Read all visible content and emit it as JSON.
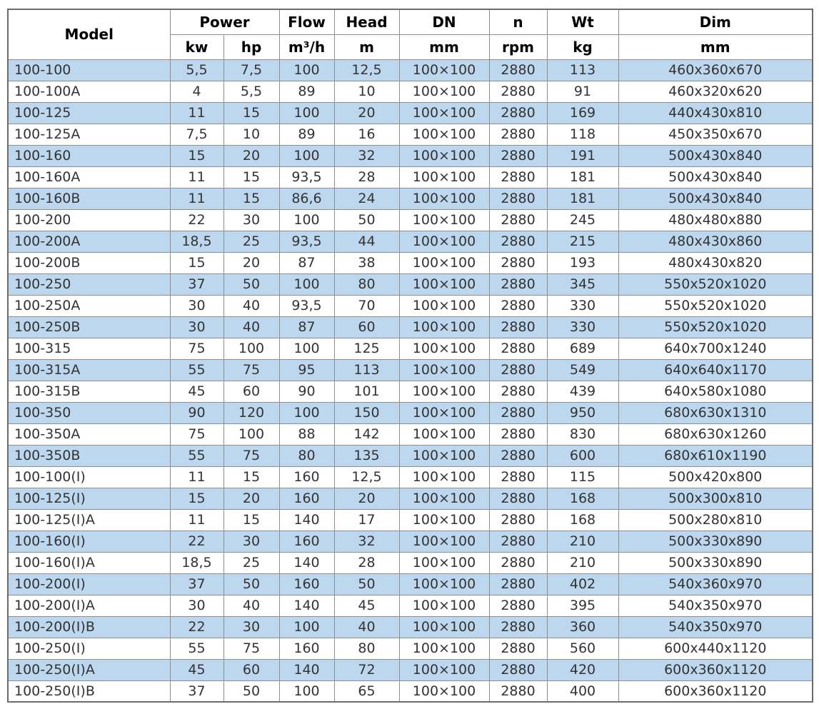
{
  "colors": {
    "alt_row": "#bdd7ee",
    "border": "#8e8e8e",
    "outer_border": "#6b6b6b",
    "header_text": "#000000",
    "body_text": "#333333",
    "background": "#ffffff"
  },
  "table": {
    "header": {
      "model": "Model",
      "power": "Power",
      "kw": "kw",
      "hp": "hp",
      "flow": "Flow",
      "flow_unit": "m³/h",
      "head": "Head",
      "head_unit": "m",
      "dn": "DN",
      "dn_unit": "mm",
      "n": "n",
      "n_unit": "rpm",
      "wt": "Wt",
      "wt_unit": "kg",
      "dim": "Dim",
      "dim_unit": "mm"
    },
    "rows": [
      [
        "100-100",
        "5,5",
        "7,5",
        "100",
        "12,5",
        "100×100",
        "2880",
        "113",
        "460x360x670"
      ],
      [
        "100-100A",
        "4",
        "5,5",
        "89",
        "10",
        "100×100",
        "2880",
        "91",
        "460x320x620"
      ],
      [
        "100-125",
        "11",
        "15",
        "100",
        "20",
        "100×100",
        "2880",
        "169",
        "440x430x810"
      ],
      [
        "100-125A",
        "7,5",
        "10",
        "89",
        "16",
        "100×100",
        "2880",
        "118",
        "450x350x670"
      ],
      [
        "100-160",
        "15",
        "20",
        "100",
        "32",
        "100×100",
        "2880",
        "191",
        "500x430x840"
      ],
      [
        "100-160A",
        "11",
        "15",
        "93,5",
        "28",
        "100×100",
        "2880",
        "181",
        "500x430x840"
      ],
      [
        "100-160B",
        "11",
        "15",
        "86,6",
        "24",
        "100×100",
        "2880",
        "181",
        "500x430x840"
      ],
      [
        "100-200",
        "22",
        "30",
        "100",
        "50",
        "100×100",
        "2880",
        "245",
        "480x480x880"
      ],
      [
        "100-200A",
        "18,5",
        "25",
        "93,5",
        "44",
        "100×100",
        "2880",
        "215",
        "480x430x860"
      ],
      [
        "100-200B",
        "15",
        "20",
        "87",
        "38",
        "100×100",
        "2880",
        "193",
        "480x430x820"
      ],
      [
        "100-250",
        "37",
        "50",
        "100",
        "80",
        "100×100",
        "2880",
        "345",
        "550x520x1020"
      ],
      [
        "100-250A",
        "30",
        "40",
        "93,5",
        "70",
        "100×100",
        "2880",
        "330",
        "550x520x1020"
      ],
      [
        "100-250B",
        "30",
        "40",
        "87",
        "60",
        "100×100",
        "2880",
        "330",
        "550x520x1020"
      ],
      [
        "100-315",
        "75",
        "100",
        "100",
        "125",
        "100×100",
        "2880",
        "689",
        "640x700x1240"
      ],
      [
        "100-315A",
        "55",
        "75",
        "95",
        "113",
        "100×100",
        "2880",
        "549",
        "640x640x1170"
      ],
      [
        "100-315B",
        "45",
        "60",
        "90",
        "101",
        "100×100",
        "2880",
        "439",
        "640x580x1080"
      ],
      [
        "100-350",
        "90",
        "120",
        "100",
        "150",
        "100×100",
        "2880",
        "950",
        "680x630x1310"
      ],
      [
        "100-350A",
        "75",
        "100",
        "88",
        "142",
        "100×100",
        "2880",
        "830",
        "680x630x1260"
      ],
      [
        "100-350B",
        "55",
        "75",
        "80",
        "135",
        "100×100",
        "2880",
        "600",
        "680x610x1190"
      ],
      [
        "100-100(I)",
        "11",
        "15",
        "160",
        "12,5",
        "100×100",
        "2880",
        "115",
        "500x420x800"
      ],
      [
        "100-125(I)",
        "15",
        "20",
        "160",
        "20",
        "100×100",
        "2880",
        "168",
        "500x300x810"
      ],
      [
        "100-125(I)A",
        "11",
        "15",
        "140",
        "17",
        "100×100",
        "2880",
        "168",
        "500x280x810"
      ],
      [
        "100-160(I)",
        "22",
        "30",
        "160",
        "32",
        "100×100",
        "2880",
        "210",
        "500x330x890"
      ],
      [
        "100-160(I)A",
        "18,5",
        "25",
        "140",
        "28",
        "100×100",
        "2880",
        "210",
        "500x330x890"
      ],
      [
        "100-200(I)",
        "37",
        "50",
        "160",
        "50",
        "100×100",
        "2880",
        "402",
        "540x360x970"
      ],
      [
        "100-200(I)A",
        "30",
        "40",
        "140",
        "45",
        "100×100",
        "2880",
        "395",
        "540x350x970"
      ],
      [
        "100-200(I)B",
        "22",
        "30",
        "100",
        "40",
        "100×100",
        "2880",
        "360",
        "540x350x970"
      ],
      [
        "100-250(I)",
        "55",
        "75",
        "160",
        "80",
        "100×100",
        "2880",
        "560",
        "600x440x1120"
      ],
      [
        "100-250(I)A",
        "45",
        "60",
        "140",
        "72",
        "100×100",
        "2880",
        "420",
        "600x360x1120"
      ],
      [
        "100-250(I)B",
        "37",
        "50",
        "100",
        "65",
        "100×100",
        "2880",
        "400",
        "600x360x1120"
      ]
    ]
  }
}
